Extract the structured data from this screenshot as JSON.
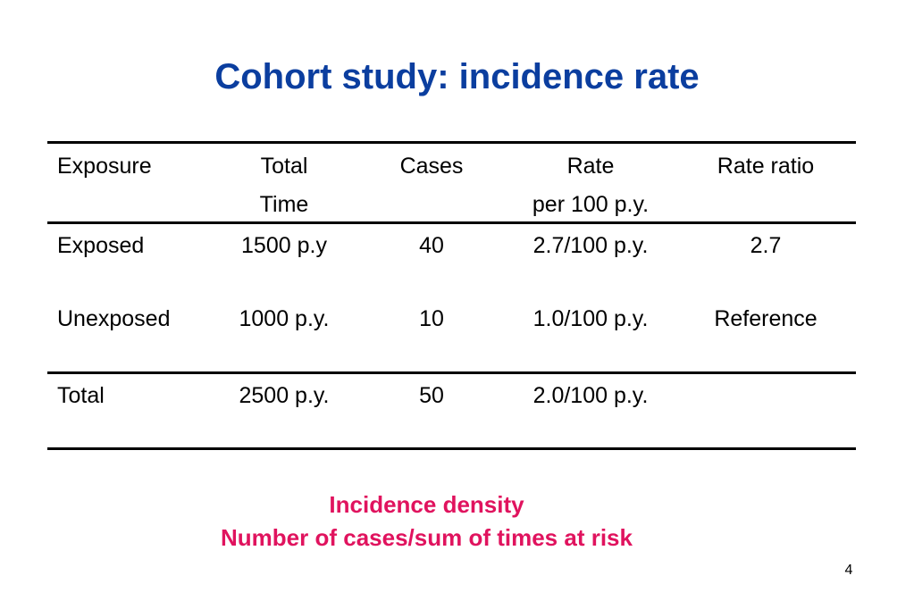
{
  "slide": {
    "title": "Cohort study: incidence rate",
    "title_color": "#0B3E9F",
    "table": {
      "header_line1": [
        "Exposure",
        "Total",
        "Cases",
        "Rate",
        "Rate ratio"
      ],
      "header_line2": [
        "",
        "Time",
        "",
        "per 100 p.y.",
        ""
      ],
      "rows": [
        [
          "Exposed",
          "1500 p.y",
          "40",
          "2.7/100 p.y.",
          "2.7"
        ],
        [
          "Unexposed",
          "1000 p.y.",
          "10",
          "1.0/100 p.y.",
          "Reference"
        ]
      ],
      "total_row": [
        "Total",
        "2500 p.y.",
        "50",
        "2.0/100 p.y.",
        ""
      ]
    },
    "note": {
      "line1": "Incidence density",
      "line2": "Number of cases/sum of times at risk",
      "color": "#E0135E"
    },
    "page_number": "4"
  }
}
